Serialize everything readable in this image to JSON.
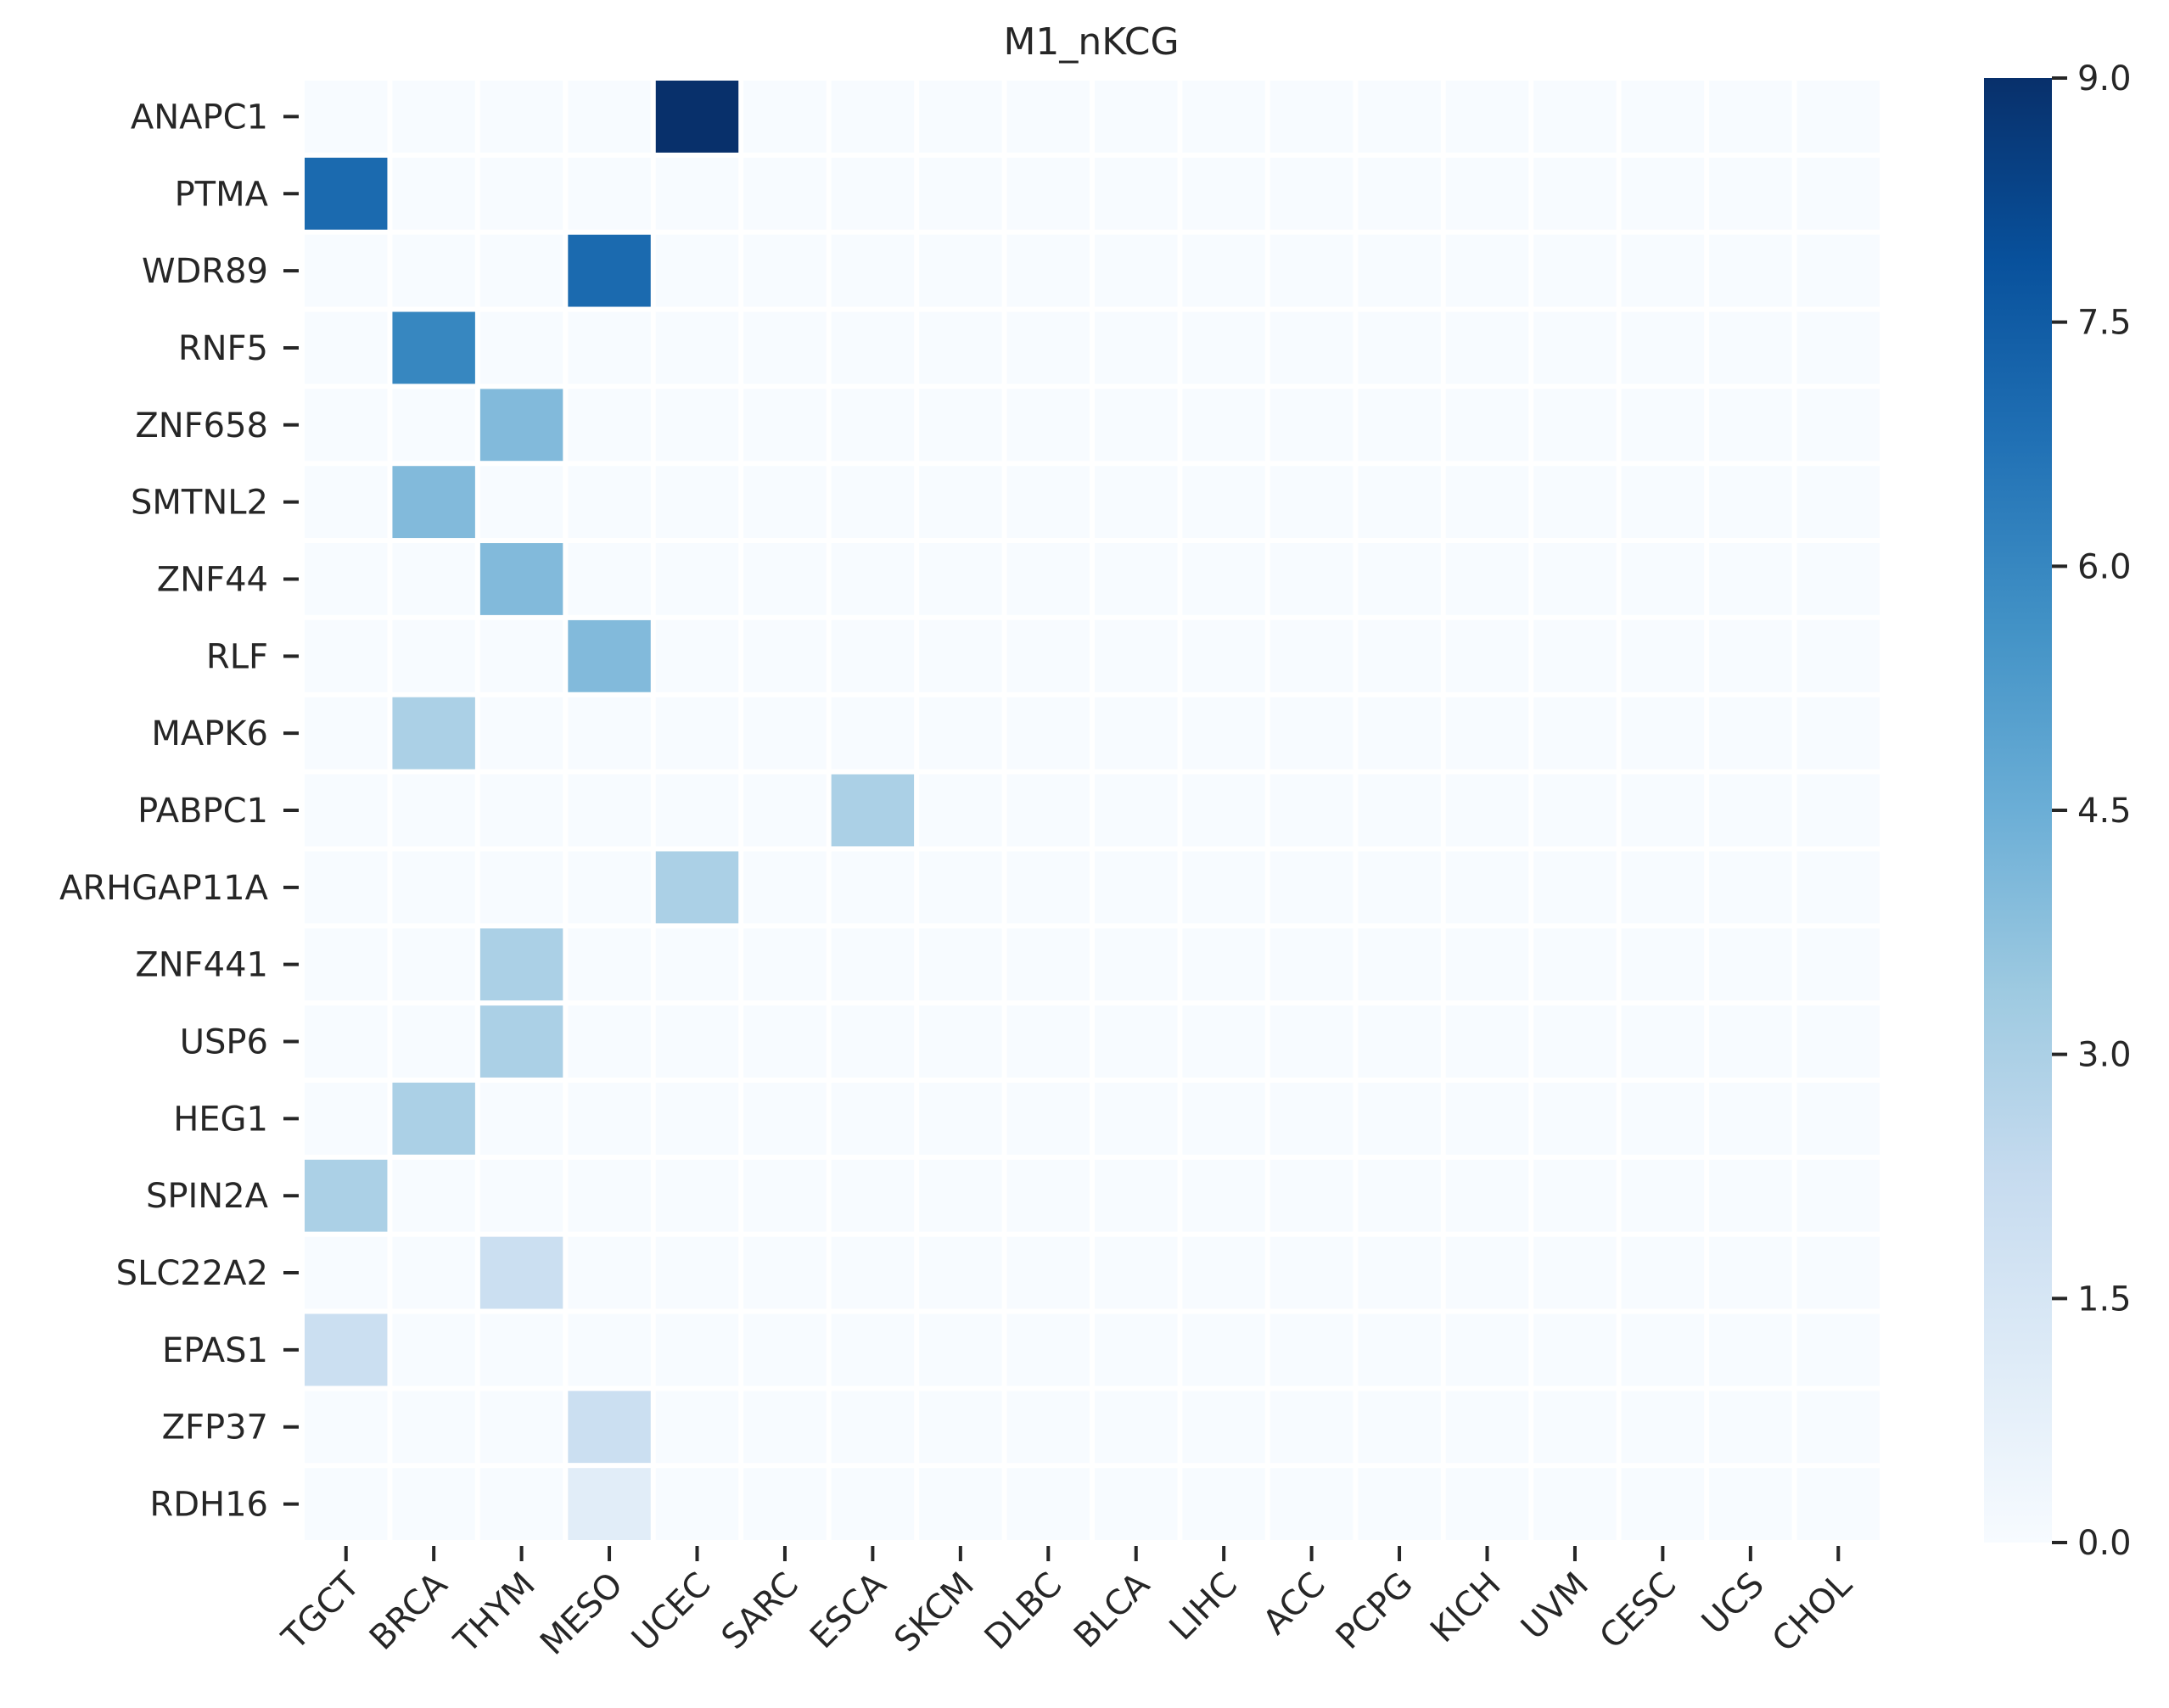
{
  "chart_data": {
    "type": "heatmap",
    "title": "M1_nKCG",
    "xlabel": "",
    "ylabel": "",
    "columns": [
      "TGCT",
      "BRCA",
      "THYM",
      "MESO",
      "UCEC",
      "SARC",
      "ESCA",
      "SKCM",
      "DLBC",
      "BLCA",
      "LIHC",
      "ACC",
      "PCPG",
      "KICH",
      "UVM",
      "CESC",
      "UCS",
      "CHOL"
    ],
    "rows": [
      "ANAPC1",
      "PTMA",
      "WDR89",
      "RNF5",
      "ZNF658",
      "SMTNL2",
      "ZNF44",
      "RLF",
      "MAPK6",
      "PABPC1",
      "ARHGAP11A",
      "ZNF441",
      "USP6",
      "HEG1",
      "SPIN2A",
      "SLC22A2",
      "EPAS1",
      "ZFP37",
      "RDH16"
    ],
    "values": [
      [
        0,
        0,
        0,
        0,
        9,
        0,
        0,
        0,
        0,
        0,
        0,
        0,
        0,
        0,
        0,
        0,
        0,
        0
      ],
      [
        7,
        0,
        0,
        0,
        0,
        0,
        0,
        0,
        0,
        0,
        0,
        0,
        0,
        0,
        0,
        0,
        0,
        0
      ],
      [
        0,
        0,
        0,
        7,
        0,
        0,
        0,
        0,
        0,
        0,
        0,
        0,
        0,
        0,
        0,
        0,
        0,
        0
      ],
      [
        0,
        6,
        0,
        0,
        0,
        0,
        0,
        0,
        0,
        0,
        0,
        0,
        0,
        0,
        0,
        0,
        0,
        0
      ],
      [
        0,
        0,
        4,
        0,
        0,
        0,
        0,
        0,
        0,
        0,
        0,
        0,
        0,
        0,
        0,
        0,
        0,
        0
      ],
      [
        0,
        4,
        0,
        0,
        0,
        0,
        0,
        0,
        0,
        0,
        0,
        0,
        0,
        0,
        0,
        0,
        0,
        0
      ],
      [
        0,
        0,
        4,
        0,
        0,
        0,
        0,
        0,
        0,
        0,
        0,
        0,
        0,
        0,
        0,
        0,
        0,
        0
      ],
      [
        0,
        0,
        0,
        4,
        0,
        0,
        0,
        0,
        0,
        0,
        0,
        0,
        0,
        0,
        0,
        0,
        0,
        0
      ],
      [
        0,
        3,
        0,
        0,
        0,
        0,
        0,
        0,
        0,
        0,
        0,
        0,
        0,
        0,
        0,
        0,
        0,
        0
      ],
      [
        0,
        0,
        0,
        0,
        0,
        0,
        3,
        0,
        0,
        0,
        0,
        0,
        0,
        0,
        0,
        0,
        0,
        0
      ],
      [
        0,
        0,
        0,
        0,
        3,
        0,
        0,
        0,
        0,
        0,
        0,
        0,
        0,
        0,
        0,
        0,
        0,
        0
      ],
      [
        0,
        0,
        3,
        0,
        0,
        0,
        0,
        0,
        0,
        0,
        0,
        0,
        0,
        0,
        0,
        0,
        0,
        0
      ],
      [
        0,
        0,
        3,
        0,
        0,
        0,
        0,
        0,
        0,
        0,
        0,
        0,
        0,
        0,
        0,
        0,
        0,
        0
      ],
      [
        0,
        3,
        0,
        0,
        0,
        0,
        0,
        0,
        0,
        0,
        0,
        0,
        0,
        0,
        0,
        0,
        0,
        0
      ],
      [
        3,
        0,
        0,
        0,
        0,
        0,
        0,
        0,
        0,
        0,
        0,
        0,
        0,
        0,
        0,
        0,
        0,
        0
      ],
      [
        0,
        0,
        2,
        0,
        0,
        0,
        0,
        0,
        0,
        0,
        0,
        0,
        0,
        0,
        0,
        0,
        0,
        0
      ],
      [
        2,
        0,
        0,
        0,
        0,
        0,
        0,
        0,
        0,
        0,
        0,
        0,
        0,
        0,
        0,
        0,
        0,
        0
      ],
      [
        0,
        0,
        0,
        2,
        0,
        0,
        0,
        0,
        0,
        0,
        0,
        0,
        0,
        0,
        0,
        0,
        0,
        0
      ],
      [
        0,
        0,
        0,
        1,
        0,
        0,
        0,
        0,
        0,
        0,
        0,
        0,
        0,
        0,
        0,
        0,
        0,
        0
      ]
    ],
    "colorscale": "Blues",
    "colorbar_range": [
      0,
      9
    ],
    "colorbar_ticks": [
      "0.0",
      "1.5",
      "3.0",
      "4.5",
      "6.0",
      "7.5",
      "9.0"
    ],
    "grid": false,
    "cell_border_color": "#ffffff",
    "colors": [
      "#f7fbff",
      "#deebf7",
      "#c6dbef",
      "#9ecae1",
      "#6baed6",
      "#4292c6",
      "#2171b5",
      "#08519c",
      "#08306b"
    ]
  }
}
